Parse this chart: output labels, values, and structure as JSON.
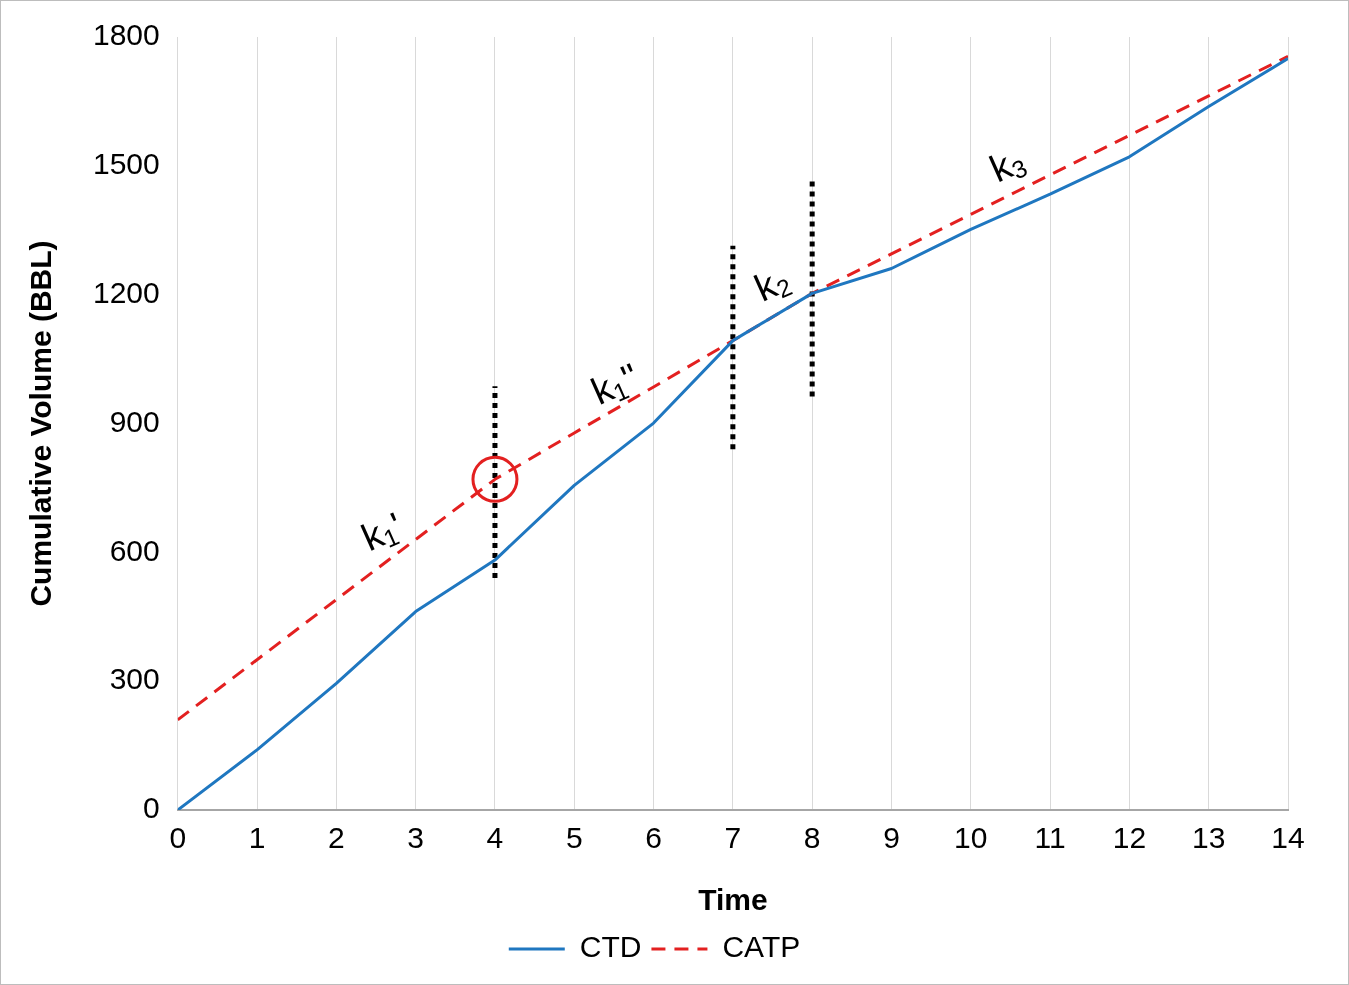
{
  "chart_data": {
    "type": "line",
    "xlabel": "Time",
    "ylabel": "Cumulative Volume (BBL)",
    "x": [
      0,
      1,
      2,
      3,
      4,
      5,
      6,
      7,
      8,
      9,
      10,
      11,
      12,
      13,
      14
    ],
    "xlim": [
      0,
      14
    ],
    "xticks": [
      0,
      1,
      2,
      3,
      4,
      5,
      6,
      7,
      8,
      9,
      10,
      11,
      12,
      13,
      14
    ],
    "ylim": [
      0,
      1800
    ],
    "yticks": [
      0,
      300,
      600,
      900,
      1200,
      1500,
      1800
    ],
    "grid": "x",
    "legend": "bottom",
    "series": [
      {
        "name": "CTD",
        "color": "#1f77c0",
        "line_style": "solid",
        "marker": "none",
        "values": [
          0,
          140,
          295,
          462,
          582,
          756,
          901,
          1093,
          1203,
          1261,
          1352,
          1434,
          1521,
          1638,
          1750
        ]
      },
      {
        "name": "CATP",
        "color": "#e32020",
        "line_style": "dashed",
        "marker": "none",
        "values": [
          210,
          350,
          490,
          630,
          770,
          878,
          985,
          1093,
          1203,
          1295,
          1387,
          1479,
          1571,
          1663,
          1755
        ]
      },
      {
        "color": "#000000",
        "line_style": "dotted",
        "marker": "none",
        "x": [
          4,
          4
        ],
        "values": [
          540,
          987
        ]
      },
      {
        "color": "#000000",
        "line_style": "dotted",
        "marker": "none",
        "x": [
          7,
          7
        ],
        "values": [
          840,
          1314
        ]
      },
      {
        "color": "#000000",
        "line_style": "dotted",
        "marker": "none",
        "x": [
          8,
          8
        ],
        "values": [
          963,
          1466
        ]
      },
      {
        "type": "scatter",
        "color": "#e32020",
        "marker": "circle",
        "x": [
          4
        ],
        "values": [
          770
        ]
      }
    ],
    "annotations": [
      "k$_{1}$'",
      "k$_{1}$''",
      "k$_{2}$",
      "k$_{3}$"
    ]
  }
}
